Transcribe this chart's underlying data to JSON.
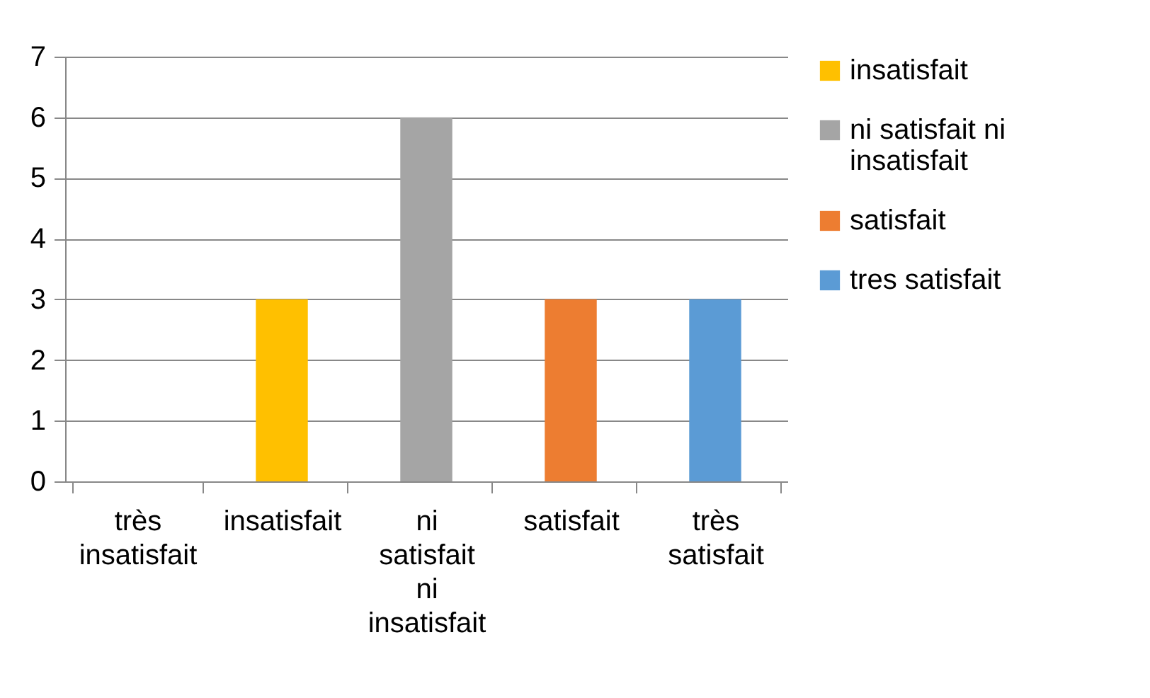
{
  "chart_data": {
    "type": "bar",
    "categories": [
      "très insatisfait",
      "insatisfait",
      "ni satisfait ni insatisfait",
      "satisfait",
      "très satisfait"
    ],
    "series": [
      {
        "values": [
          0,
          null,
          null,
          null,
          null
        ]
      },
      {
        "name": "insatisfait",
        "color": "#ffc000",
        "values": [
          null,
          3,
          null,
          null,
          null
        ]
      },
      {
        "name": "ni satisfait ni insatisfait",
        "color": "#a5a5a5",
        "values": [
          null,
          null,
          6,
          null,
          null
        ]
      },
      {
        "name": "satisfait",
        "color": "#ed7d31",
        "values": [
          null,
          null,
          null,
          3,
          null
        ]
      },
      {
        "name": "tres satisfait",
        "color": "#5b9bd5",
        "values": [
          null,
          null,
          null,
          null,
          3
        ]
      }
    ],
    "ylim": [
      0,
      7
    ],
    "yticks": [
      0,
      1,
      2,
      3,
      4,
      5,
      6,
      7
    ],
    "grid": "y",
    "legend": "right"
  }
}
